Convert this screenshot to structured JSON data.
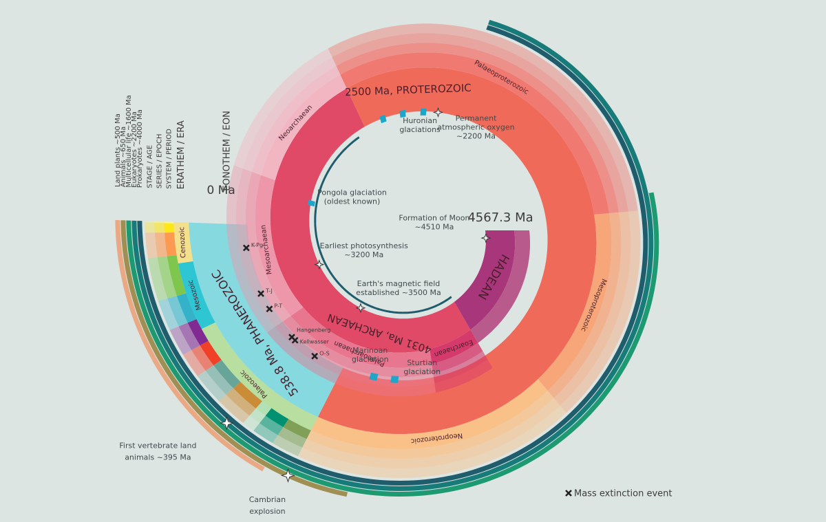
{
  "hadean": {
    "name": "HADEAN",
    "start": "4567.3 Ma"
  },
  "eons": [
    {
      "label": "4031 Ma, ARCHAEAN",
      "eras": [
        "Eoarchaean",
        "Palaeoarchaean",
        "Mesoarchaean",
        "Neoarchaean"
      ]
    },
    {
      "label": "2500 Ma, PROTEROZOIC",
      "eras": [
        "Palaeoproterozoic",
        "Mesoproterozoic",
        "Neoproterozoic"
      ]
    },
    {
      "label": "538.8 Ma, PHANEROZOIC",
      "eras": [
        "Palaeozoic",
        "Mesozoic",
        "Cenozoic"
      ]
    }
  ],
  "present": "0 Ma",
  "columns": [
    "EONOTHEM / EON",
    "ERATHEM / ERA",
    "SYSTEM / PERIOD",
    "SERIES / EPOCH",
    "STAGE / AGE"
  ],
  "life": [
    "Prokaryotes ~4000 Ma",
    "Eukaryotes ~2200 Ma",
    "Multicellular life ~1600 Ma",
    "Animals ~650 Ma",
    "Land plants ~500 Ma"
  ],
  "events": [
    {
      "lines": [
        "Formation of Moon",
        "~4510 Ma"
      ]
    },
    {
      "lines": [
        "Earth's magnetic field",
        "established ~3500 Ma"
      ]
    },
    {
      "lines": [
        "Earliest photosynthesis",
        "~3200 Ma"
      ]
    },
    {
      "lines": [
        "Pongola glaciation",
        "(oldest known)"
      ]
    },
    {
      "lines": [
        "Huronian",
        "glaciations"
      ]
    },
    {
      "lines": [
        "Permanent",
        "atmospheric oxygen",
        "~2200 Ma"
      ]
    },
    {
      "lines": [
        "Sturtian",
        "glaciation"
      ]
    },
    {
      "lines": [
        "Marinoan",
        "glaciation"
      ]
    },
    {
      "lines": [
        "First vertebrate land",
        "animals ~395 Ma"
      ]
    },
    {
      "lines": [
        "Cambrian",
        "explosion"
      ]
    }
  ],
  "extinctions": [
    "K-Pg",
    "T-J",
    "P-T",
    "Hangenberg",
    "Kellwasser",
    "O-S"
  ],
  "legend": "Mass extinction event"
}
